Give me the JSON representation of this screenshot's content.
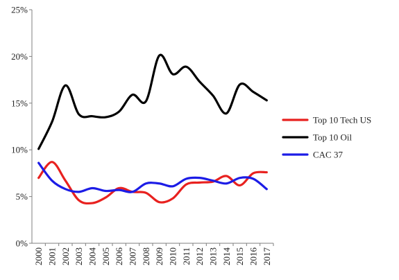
{
  "chart_data": {
    "type": "line",
    "title": "",
    "xlabel": "",
    "ylabel": "",
    "x": [
      "2000",
      "2001",
      "2002",
      "2003",
      "2004",
      "2005",
      "2006",
      "2007",
      "2008",
      "2009",
      "2010",
      "2011",
      "2012",
      "2013",
      "2014",
      "2015",
      "2016",
      "2017"
    ],
    "ylim": [
      0,
      25
    ],
    "yticks": [
      "0%",
      "5%",
      "10%",
      "15%",
      "20%",
      "25%"
    ],
    "grid": false,
    "legend_position": "right",
    "series": [
      {
        "name": "Top 10 Tech US",
        "color": "#e8211f",
        "values": [
          7.0,
          8.7,
          6.7,
          4.6,
          4.3,
          4.9,
          5.9,
          5.5,
          5.4,
          4.4,
          4.8,
          6.3,
          6.5,
          6.6,
          7.2,
          6.2,
          7.5,
          7.6
        ]
      },
      {
        "name": "Top 10 Oil",
        "color": "#000000",
        "values": [
          10.1,
          13.0,
          16.9,
          13.8,
          13.6,
          13.5,
          14.1,
          15.9,
          15.2,
          20.1,
          18.1,
          18.9,
          17.3,
          15.8,
          13.9,
          17.0,
          16.2,
          15.3
        ]
      },
      {
        "name": "CAC 37",
        "color": "#1c1ce6",
        "values": [
          8.6,
          6.7,
          5.8,
          5.5,
          5.9,
          5.6,
          5.7,
          5.5,
          6.4,
          6.4,
          6.1,
          6.9,
          7.0,
          6.7,
          6.4,
          7.0,
          6.9,
          5.8
        ]
      }
    ]
  }
}
